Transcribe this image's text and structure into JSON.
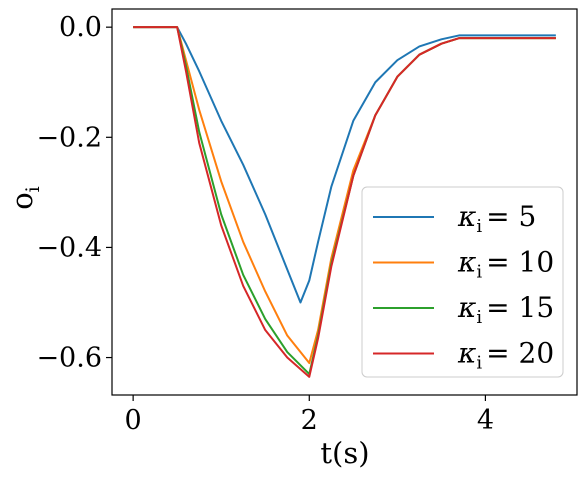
{
  "chart_data": {
    "type": "line",
    "xlabel": "t(s)",
    "ylabel": "o",
    "ylabel_sub": "i",
    "xlim": [
      -0.24,
      5.04
    ],
    "ylim": [
      -0.668,
      0.033
    ],
    "xticks": [
      0,
      2,
      4
    ],
    "xtick_labels": [
      "0",
      "2",
      "4"
    ],
    "yticks": [
      0.0,
      -0.2,
      -0.4,
      -0.6
    ],
    "ytick_labels": [
      "0.0",
      "−0.2",
      "−0.4",
      "−0.6"
    ],
    "grid": false,
    "legend_position": "lower-right",
    "series": [
      {
        "name": "κi = 5",
        "legend_symbol": "κ",
        "legend_sub": "i",
        "legend_value": "= 5",
        "color": "#1f77b4",
        "x": [
          0,
          0.5,
          0.6,
          0.75,
          1.0,
          1.25,
          1.5,
          1.75,
          1.9,
          2.0,
          2.1,
          2.25,
          2.5,
          2.75,
          3.0,
          3.25,
          3.5,
          3.7,
          4.0,
          4.5,
          4.8
        ],
        "y": [
          0,
          0,
          -0.03,
          -0.08,
          -0.17,
          -0.25,
          -0.34,
          -0.44,
          -0.5,
          -0.46,
          -0.39,
          -0.29,
          -0.17,
          -0.1,
          -0.06,
          -0.035,
          -0.022,
          -0.015,
          -0.015,
          -0.015,
          -0.015
        ]
      },
      {
        "name": "κi = 10",
        "legend_symbol": "κ",
        "legend_sub": "i",
        "legend_value": "= 10",
        "color": "#ff7f0e",
        "x": [
          0,
          0.5,
          0.6,
          0.75,
          1.0,
          1.25,
          1.5,
          1.75,
          2.0,
          2.1,
          2.25,
          2.5,
          2.75,
          3.0,
          3.25,
          3.5,
          3.7,
          4.0,
          4.5,
          4.8
        ],
        "y": [
          0,
          0,
          -0.06,
          -0.15,
          -0.28,
          -0.39,
          -0.48,
          -0.56,
          -0.61,
          -0.55,
          -0.42,
          -0.26,
          -0.16,
          -0.09,
          -0.05,
          -0.03,
          -0.02,
          -0.02,
          -0.02,
          -0.02
        ]
      },
      {
        "name": "κi = 15",
        "legend_symbol": "κ",
        "legend_sub": "i",
        "legend_value": "= 15",
        "color": "#2ca02c",
        "x": [
          0,
          0.5,
          0.6,
          0.75,
          1.0,
          1.25,
          1.5,
          1.75,
          2.0,
          2.1,
          2.25,
          2.5,
          2.75,
          3.0,
          3.25,
          3.5,
          3.7,
          4.0,
          4.5,
          4.8
        ],
        "y": [
          0,
          0,
          -0.07,
          -0.19,
          -0.34,
          -0.45,
          -0.53,
          -0.59,
          -0.63,
          -0.56,
          -0.43,
          -0.27,
          -0.16,
          -0.09,
          -0.05,
          -0.03,
          -0.02,
          -0.02,
          -0.02,
          -0.02
        ]
      },
      {
        "name": "κi = 20",
        "legend_symbol": "κ",
        "legend_sub": "i",
        "legend_value": "= 20",
        "color": "#d62728",
        "x": [
          0,
          0.5,
          0.6,
          0.75,
          1.0,
          1.25,
          1.5,
          1.75,
          2.0,
          2.1,
          2.25,
          2.5,
          2.75,
          3.0,
          3.25,
          3.5,
          3.7,
          4.0,
          4.5,
          4.8
        ],
        "y": [
          0,
          0,
          -0.08,
          -0.21,
          -0.36,
          -0.47,
          -0.55,
          -0.6,
          -0.635,
          -0.565,
          -0.435,
          -0.27,
          -0.16,
          -0.09,
          -0.05,
          -0.03,
          -0.02,
          -0.02,
          -0.02,
          -0.02
        ]
      }
    ]
  }
}
